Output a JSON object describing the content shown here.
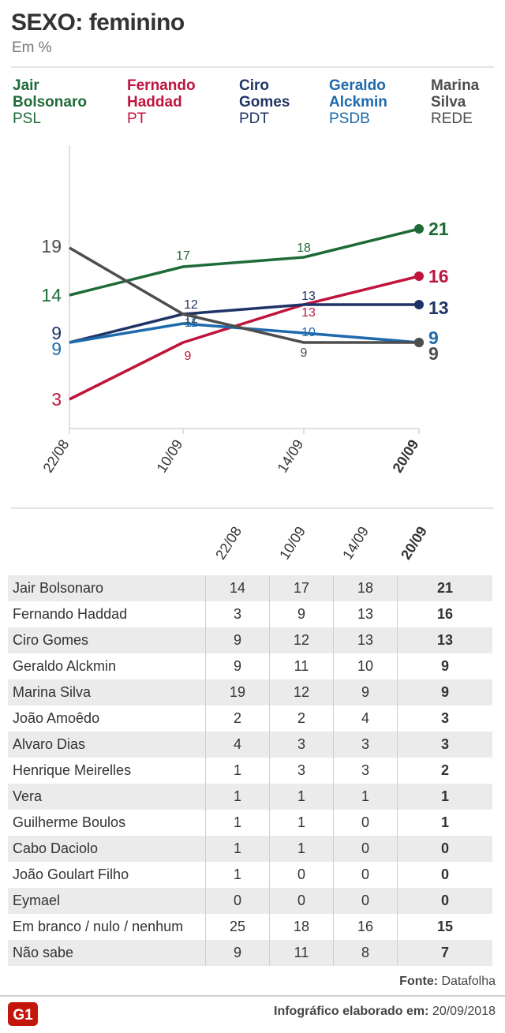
{
  "header": {
    "title": "SEXO: feminino",
    "subtitle": "Em %"
  },
  "legend": [
    {
      "name": "Jair\nBolsonaro",
      "party": "PSL",
      "color": "#1e6b37"
    },
    {
      "name": "Fernando\nHaddad",
      "party": "PT",
      "color": "#c0143c"
    },
    {
      "name": "Ciro\nGomes",
      "party": "PDT",
      "color": "#1f3466"
    },
    {
      "name": "Geraldo\nAlckmin",
      "party": "PSDB",
      "color": "#1e6aac"
    },
    {
      "name": "Marina\nSilva",
      "party": "REDE",
      "color": "#4d4d4d"
    }
  ],
  "chart_data": {
    "type": "line",
    "x": [
      "22/08",
      "10/09",
      "14/09",
      "20/09"
    ],
    "series": [
      {
        "name": "Jair Bolsonaro",
        "color": "#1e6b37",
        "values": [
          14,
          17,
          18,
          21
        ]
      },
      {
        "name": "Fernando Haddad",
        "color": "#c0143c",
        "values": [
          3,
          9,
          13,
          16
        ]
      },
      {
        "name": "Ciro Gomes",
        "color": "#1f3466",
        "values": [
          9,
          12,
          13,
          13
        ]
      },
      {
        "name": "Geraldo Alckmin",
        "color": "#1e6aac",
        "values": [
          9,
          11,
          10,
          9
        ]
      },
      {
        "name": "Marina Silva",
        "color": "#4d4d4d",
        "values": [
          19,
          12,
          9,
          9
        ]
      }
    ]
  },
  "table": {
    "columns": [
      "22/08",
      "10/09",
      "14/09",
      "20/09"
    ],
    "rows": [
      {
        "name": "Jair Bolsonaro",
        "values": [
          "14",
          "17",
          "18",
          "21"
        ]
      },
      {
        "name": "Fernando Haddad",
        "values": [
          "3",
          "9",
          "13",
          "16"
        ]
      },
      {
        "name": "Ciro Gomes",
        "values": [
          "9",
          "12",
          "13",
          "13"
        ]
      },
      {
        "name": "Geraldo Alckmin",
        "values": [
          "9",
          "11",
          "10",
          "9"
        ]
      },
      {
        "name": "Marina Silva",
        "values": [
          "19",
          "12",
          "9",
          "9"
        ]
      },
      {
        "name": "João Amoêdo",
        "values": [
          "2",
          "2",
          "4",
          "3"
        ]
      },
      {
        "name": "Alvaro Dias",
        "values": [
          "4",
          "3",
          "3",
          "3"
        ]
      },
      {
        "name": "Henrique Meirelles",
        "values": [
          "1",
          "3",
          "3",
          "2"
        ]
      },
      {
        "name": "Vera",
        "values": [
          "1",
          "1",
          "1",
          "1"
        ]
      },
      {
        "name": "Guilherme Boulos",
        "values": [
          "1",
          "1",
          "0",
          "1"
        ]
      },
      {
        "name": "Cabo Daciolo",
        "values": [
          "1",
          "1",
          "0",
          "0"
        ]
      },
      {
        "name": "João Goulart Filho",
        "values": [
          "1",
          "0",
          "0",
          "0"
        ]
      },
      {
        "name": "Eymael",
        "values": [
          "0",
          "0",
          "0",
          "0"
        ]
      },
      {
        "name": "Em branco / nulo / nenhum",
        "values": [
          "25",
          "18",
          "16",
          "15"
        ]
      },
      {
        "name": "Não sabe",
        "values": [
          "9",
          "11",
          "8",
          "7"
        ]
      }
    ]
  },
  "footer": {
    "source_label": "Fonte:",
    "source_value": "Datafolha",
    "credit_label": "Infográfico elaborado em:",
    "credit_date": "20/09/2018",
    "logo": "G1"
  }
}
